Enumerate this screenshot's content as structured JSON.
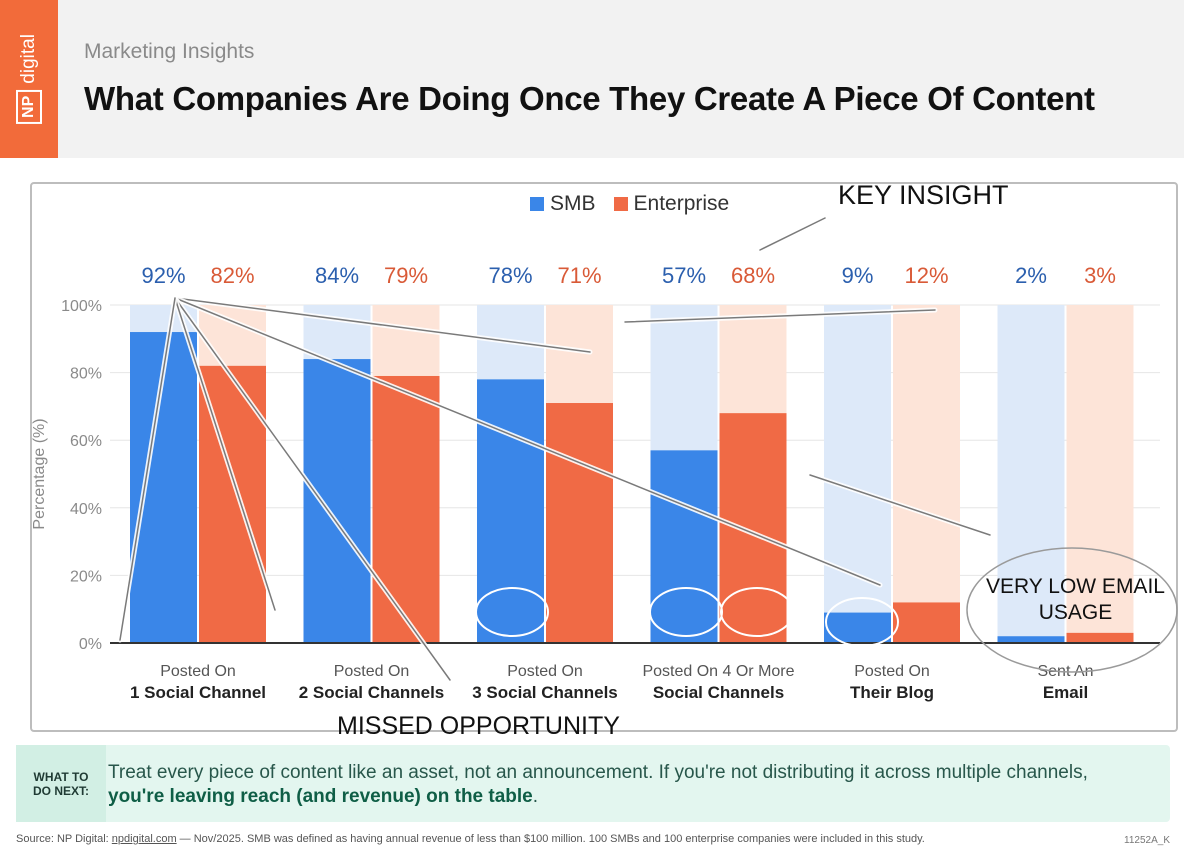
{
  "header": {
    "logo_text": "digital",
    "logo_box": "NP",
    "subtitle": "Marketing Insights",
    "title": "What Companies Are Doing Once They Create A Piece Of Content"
  },
  "colors": {
    "smb": "#3a86e8",
    "enterprise": "#f06a45",
    "smb_bg": "#dde9f9",
    "enterprise_bg": "#fde4d8",
    "brand": "#f26b3a"
  },
  "chart_data": {
    "type": "bar",
    "ylabel": "Percentage (%)",
    "ylim": [
      0,
      100
    ],
    "yticks": [
      "0%",
      "20%",
      "40%",
      "60%",
      "80%",
      "100%"
    ],
    "legend": [
      "SMB",
      "Enterprise"
    ],
    "categories": [
      {
        "line1": "Posted On",
        "line2": "1 Social Channel"
      },
      {
        "line1": "Posted On",
        "line2": "2 Social Channels"
      },
      {
        "line1": "Posted On",
        "line2": "3 Social Channels"
      },
      {
        "line1": "Posted On 4 Or More",
        "line2": "Social Channels"
      },
      {
        "line1": "Posted On",
        "line2": "Their Blog"
      },
      {
        "line1": "Sent An",
        "line2": "Email"
      }
    ],
    "series": [
      {
        "name": "SMB",
        "values": [
          92,
          84,
          78,
          57,
          9,
          2
        ]
      },
      {
        "name": "Enterprise",
        "values": [
          82,
          79,
          71,
          68,
          12,
          3
        ]
      }
    ]
  },
  "annotations": {
    "key_insight": "KEY INSIGHT",
    "missed_opportunity": "MISSED OPPORTUNITY",
    "low_email_1": "VERY LOW EMAIL",
    "low_email_2": "USAGE"
  },
  "next": {
    "label_1": "WHAT TO",
    "label_2": "DO NEXT:",
    "text": "Treat every piece of content like an asset, not an announcement. If you're not distributing it across multiple channels, ",
    "bold": "you're leaving reach (and revenue) on the table",
    "end": "."
  },
  "footer": {
    "source_prefix": "Source: NP Digital: ",
    "source_link": "npdigital.com",
    "source_rest": " — Nov/2025. SMB was defined as having annual revenue of less than $100 million. 100 SMBs and 100 enterprise companies were included in this study.",
    "code": "11252A_K"
  }
}
